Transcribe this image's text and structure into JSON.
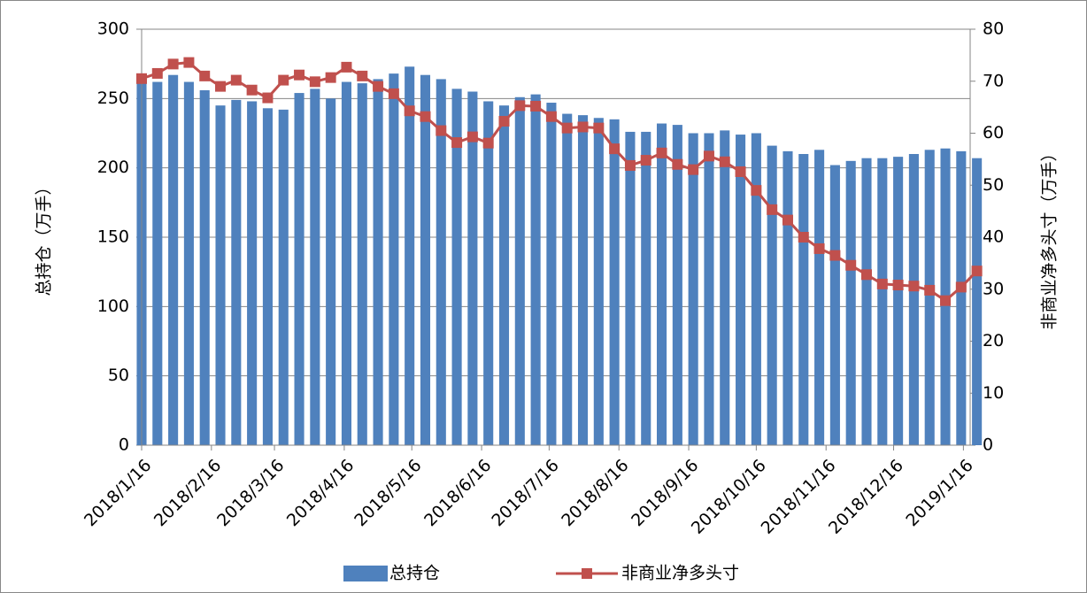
{
  "chart_data": {
    "type": "bar-line",
    "x": [
      "2018/1/16",
      "2018/1/23",
      "2018/1/30",
      "2018/2/6",
      "2018/2/13",
      "2018/2/20",
      "2018/2/27",
      "2018/3/6",
      "2018/3/13",
      "2018/3/20",
      "2018/3/27",
      "2018/4/3",
      "2018/4/10",
      "2018/4/17",
      "2018/4/24",
      "2018/5/1",
      "2018/5/8",
      "2018/5/15",
      "2018/5/22",
      "2018/5/29",
      "2018/6/5",
      "2018/6/12",
      "2018/6/19",
      "2018/6/26",
      "2018/7/3",
      "2018/7/10",
      "2018/7/17",
      "2018/7/24",
      "2018/7/31",
      "2018/8/7",
      "2018/8/14",
      "2018/8/21",
      "2018/8/28",
      "2018/9/4",
      "2018/9/11",
      "2018/9/18",
      "2018/9/25",
      "2018/10/2",
      "2018/10/9",
      "2018/10/16",
      "2018/10/23",
      "2018/10/30",
      "2018/11/6",
      "2018/11/13",
      "2018/11/20",
      "2018/11/27",
      "2018/12/4",
      "2018/12/11",
      "2018/12/18",
      "2018/12/25",
      "2019/1/1",
      "2019/1/8",
      "2019/1/15",
      "2019/1/22"
    ],
    "series": [
      {
        "name": "总持仓",
        "type": "bar",
        "color": "#4f81bd",
        "axis": "y",
        "values": [
          266,
          262,
          267,
          262,
          256,
          245,
          249,
          248,
          243,
          242,
          254,
          257,
          250,
          262,
          261,
          264,
          268,
          273,
          267,
          264,
          257,
          255,
          248,
          245,
          251,
          253,
          247,
          239,
          238,
          236,
          235,
          226,
          226,
          232,
          231,
          225,
          225,
          227,
          224,
          225,
          216,
          212,
          210,
          213,
          202,
          205,
          207,
          207,
          208,
          210,
          213,
          214,
          212,
          207
        ]
      },
      {
        "name": "非商业净多头寸",
        "type": "line",
        "color": "#c0504d",
        "axis": "y2",
        "values": [
          70.5,
          71.5,
          73.3,
          73.6,
          71,
          69,
          70.2,
          68.3,
          66.8,
          70.2,
          71.2,
          69.9,
          70.7,
          72.7,
          71,
          69,
          67.6,
          64.3,
          63.2,
          60.5,
          58.2,
          59.3,
          58.1,
          62.3,
          65.3,
          65.2,
          63.2,
          61,
          61.2,
          61,
          57,
          53.8,
          54.8,
          56.2,
          54,
          53,
          55.6,
          54.5,
          52.6,
          49,
          45.3,
          43.3,
          40,
          37.8,
          36.5,
          34.6,
          32.8,
          31,
          30.8,
          30.6,
          29.8,
          27.8,
          30.4,
          33.5
        ]
      }
    ],
    "xlim": [
      "2018/1/16",
      "2019/1/19"
    ],
    "xticks": [
      "2018/1/16",
      "2018/2/16",
      "2018/3/16",
      "2018/4/16",
      "2018/5/16",
      "2018/6/16",
      "2018/7/16",
      "2018/8/16",
      "2018/9/16",
      "2018/10/16",
      "2018/11/16",
      "2018/12/16",
      "2019/1/16"
    ],
    "ylim": [
      0,
      300
    ],
    "yticks": [
      0,
      50,
      100,
      150,
      200,
      250,
      300
    ],
    "y2lim": [
      0,
      80
    ],
    "y2ticks": [
      0,
      10,
      20,
      30,
      40,
      50,
      60,
      70,
      80
    ],
    "ylabel": "总持仓（万手）",
    "y2label": "非商业净多头寸（万手）",
    "grid": true,
    "legend": "bottom"
  }
}
